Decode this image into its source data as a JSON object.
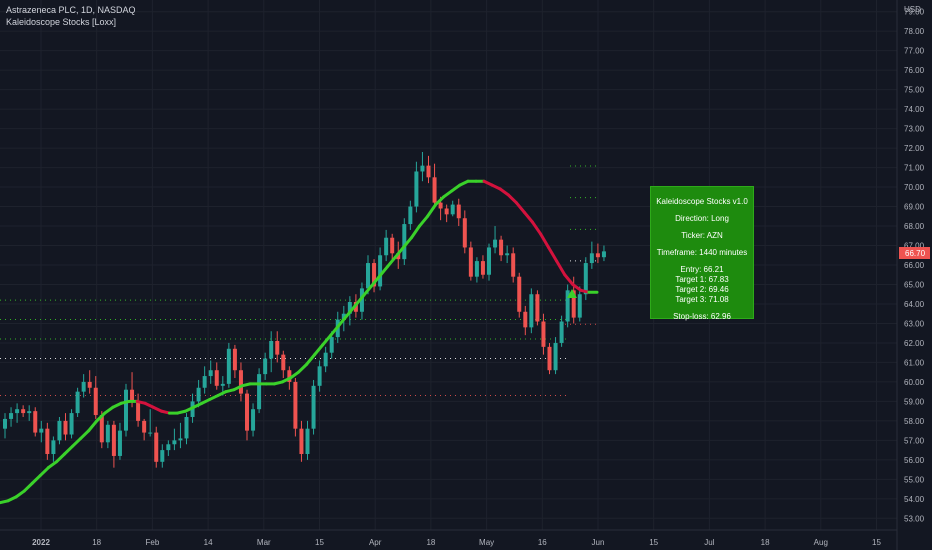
{
  "legend": {
    "symbol_line": "Astrazeneca PLC, 1D, NASDAQ",
    "indicator_line": "Kaleidoscope Stocks [Loxx]"
  },
  "currency": "USD",
  "last_price": "66.70",
  "colors": {
    "background": "#131722",
    "grid": "#1e222d",
    "axis_text": "#b2b5be",
    "up_candle": "#26a69a",
    "down_candle": "#ef5350",
    "ma_up": "#3ad12a",
    "ma_down": "#d3123d",
    "ma_transition": "#ffffff",
    "info_box": "#1e8b0e",
    "price_tag": "#ef5350"
  },
  "info_box": {
    "title": "Kaleidoscope Stocks v1.0",
    "direction": "Direction: Long",
    "ticker": "Ticker: AZN",
    "timeframe": "Timeframe: 1440 minutes",
    "entry": "Entry: 66.21",
    "target1": "Target 1: 67.83",
    "target2": "Target 2: 69.46",
    "target3": "Target 3: 71.08",
    "stoploss": "Stop-loss: 62.96"
  },
  "chart_data": {
    "type": "candlestick",
    "y_axis": {
      "ticks": [
        "53.00",
        "54.00",
        "55.00",
        "56.00",
        "57.00",
        "58.00",
        "59.00",
        "60.00",
        "61.00",
        "62.00",
        "63.00",
        "64.00",
        "65.00",
        "66.00",
        "67.00",
        "68.00",
        "69.00",
        "70.00",
        "71.00",
        "72.00",
        "73.00",
        "74.00",
        "75.00",
        "76.00",
        "77.00",
        "78.00",
        "79.00"
      ],
      "ylim": [
        52.4,
        79.6
      ]
    },
    "x_axis": {
      "ticks": [
        "2022",
        "18",
        "Feb",
        "14",
        "Mar",
        "15",
        "Apr",
        "18",
        "May",
        "16",
        "Jun",
        "15",
        "Jul",
        "18",
        "Aug",
        "15"
      ]
    },
    "candles": [
      {
        "o": 57.6,
        "h": 58.4,
        "l": 57.1,
        "c": 58.1
      },
      {
        "o": 58.1,
        "h": 58.7,
        "l": 57.7,
        "c": 58.4
      },
      {
        "o": 58.4,
        "h": 58.9,
        "l": 57.9,
        "c": 58.6
      },
      {
        "o": 58.6,
        "h": 58.8,
        "l": 58.2,
        "c": 58.4
      },
      {
        "o": 58.4,
        "h": 58.8,
        "l": 58.0,
        "c": 58.5
      },
      {
        "o": 58.5,
        "h": 58.7,
        "l": 57.2,
        "c": 57.4
      },
      {
        "o": 57.4,
        "h": 58.0,
        "l": 56.9,
        "c": 57.6
      },
      {
        "o": 57.6,
        "h": 57.9,
        "l": 56.0,
        "c": 56.3
      },
      {
        "o": 56.3,
        "h": 57.2,
        "l": 55.9,
        "c": 57.0
      },
      {
        "o": 57.0,
        "h": 58.2,
        "l": 56.8,
        "c": 58.0
      },
      {
        "o": 58.0,
        "h": 58.4,
        "l": 57.0,
        "c": 57.3
      },
      {
        "o": 57.3,
        "h": 58.6,
        "l": 57.1,
        "c": 58.4
      },
      {
        "o": 58.4,
        "h": 59.7,
        "l": 58.2,
        "c": 59.5
      },
      {
        "o": 59.5,
        "h": 60.4,
        "l": 59.2,
        "c": 60.0
      },
      {
        "o": 60.0,
        "h": 60.6,
        "l": 59.4,
        "c": 59.7
      },
      {
        "o": 59.7,
        "h": 60.3,
        "l": 58.1,
        "c": 58.3
      },
      {
        "o": 58.3,
        "h": 58.5,
        "l": 56.6,
        "c": 56.9
      },
      {
        "o": 56.9,
        "h": 58.0,
        "l": 56.6,
        "c": 57.8
      },
      {
        "o": 57.8,
        "h": 58.0,
        "l": 55.6,
        "c": 56.2
      },
      {
        "o": 56.2,
        "h": 57.9,
        "l": 56.0,
        "c": 57.5
      },
      {
        "o": 57.5,
        "h": 59.9,
        "l": 57.2,
        "c": 59.6
      },
      {
        "o": 59.6,
        "h": 60.5,
        "l": 58.7,
        "c": 59.0
      },
      {
        "o": 59.0,
        "h": 59.4,
        "l": 57.7,
        "c": 58.0
      },
      {
        "o": 58.0,
        "h": 58.1,
        "l": 57.0,
        "c": 57.4
      },
      {
        "o": 57.4,
        "h": 58.6,
        "l": 57.2,
        "c": 57.4
      },
      {
        "o": 57.4,
        "h": 57.7,
        "l": 55.6,
        "c": 55.9
      },
      {
        "o": 55.9,
        "h": 56.8,
        "l": 55.6,
        "c": 56.5
      },
      {
        "o": 56.5,
        "h": 57.0,
        "l": 56.2,
        "c": 56.8
      },
      {
        "o": 56.8,
        "h": 57.6,
        "l": 56.5,
        "c": 57.0
      },
      {
        "o": 57.0,
        "h": 57.9,
        "l": 56.6,
        "c": 57.1
      },
      {
        "o": 57.1,
        "h": 58.4,
        "l": 56.8,
        "c": 58.2
      },
      {
        "o": 58.2,
        "h": 59.4,
        "l": 57.9,
        "c": 59.0
      },
      {
        "o": 59.0,
        "h": 60.1,
        "l": 58.7,
        "c": 59.7
      },
      {
        "o": 59.7,
        "h": 60.8,
        "l": 59.4,
        "c": 60.3
      },
      {
        "o": 60.3,
        "h": 61.1,
        "l": 59.9,
        "c": 60.6
      },
      {
        "o": 60.6,
        "h": 61.0,
        "l": 59.6,
        "c": 59.8
      },
      {
        "o": 59.8,
        "h": 60.3,
        "l": 59.3,
        "c": 59.9
      },
      {
        "o": 59.9,
        "h": 62.0,
        "l": 59.7,
        "c": 61.7
      },
      {
        "o": 61.7,
        "h": 61.9,
        "l": 60.2,
        "c": 60.6
      },
      {
        "o": 60.6,
        "h": 61.0,
        "l": 59.0,
        "c": 59.4
      },
      {
        "o": 59.4,
        "h": 59.6,
        "l": 57.0,
        "c": 57.5
      },
      {
        "o": 57.5,
        "h": 58.9,
        "l": 57.2,
        "c": 58.6
      },
      {
        "o": 58.6,
        "h": 60.7,
        "l": 58.4,
        "c": 60.4
      },
      {
        "o": 60.4,
        "h": 61.5,
        "l": 60.1,
        "c": 61.2
      },
      {
        "o": 61.2,
        "h": 62.6,
        "l": 60.5,
        "c": 62.1
      },
      {
        "o": 62.1,
        "h": 62.6,
        "l": 61.0,
        "c": 61.4
      },
      {
        "o": 61.4,
        "h": 61.6,
        "l": 60.2,
        "c": 60.6
      },
      {
        "o": 60.6,
        "h": 60.8,
        "l": 59.6,
        "c": 60.0
      },
      {
        "o": 60.0,
        "h": 60.2,
        "l": 57.2,
        "c": 57.6
      },
      {
        "o": 57.6,
        "h": 58.0,
        "l": 55.9,
        "c": 56.3
      },
      {
        "o": 56.3,
        "h": 58.0,
        "l": 56.0,
        "c": 57.6
      },
      {
        "o": 57.6,
        "h": 60.1,
        "l": 57.3,
        "c": 59.8
      },
      {
        "o": 59.8,
        "h": 61.1,
        "l": 59.5,
        "c": 60.8
      },
      {
        "o": 60.8,
        "h": 61.8,
        "l": 60.5,
        "c": 61.5
      },
      {
        "o": 61.5,
        "h": 62.6,
        "l": 61.2,
        "c": 62.3
      },
      {
        "o": 62.3,
        "h": 63.6,
        "l": 62.0,
        "c": 63.2
      },
      {
        "o": 63.2,
        "h": 63.9,
        "l": 62.6,
        "c": 63.5
      },
      {
        "o": 63.5,
        "h": 64.4,
        "l": 62.9,
        "c": 64.1
      },
      {
        "o": 64.1,
        "h": 64.5,
        "l": 63.3,
        "c": 63.6
      },
      {
        "o": 63.6,
        "h": 65.1,
        "l": 63.2,
        "c": 64.8
      },
      {
        "o": 64.8,
        "h": 66.5,
        "l": 64.5,
        "c": 66.1
      },
      {
        "o": 66.1,
        "h": 66.3,
        "l": 64.6,
        "c": 64.9
      },
      {
        "o": 64.9,
        "h": 66.9,
        "l": 64.7,
        "c": 66.5
      },
      {
        "o": 66.5,
        "h": 67.8,
        "l": 66.2,
        "c": 67.4
      },
      {
        "o": 67.4,
        "h": 67.6,
        "l": 66.3,
        "c": 66.6
      },
      {
        "o": 66.6,
        "h": 67.2,
        "l": 65.8,
        "c": 66.3
      },
      {
        "o": 66.3,
        "h": 68.4,
        "l": 66.0,
        "c": 68.1
      },
      {
        "o": 68.1,
        "h": 69.3,
        "l": 67.8,
        "c": 69.0
      },
      {
        "o": 69.0,
        "h": 71.3,
        "l": 68.7,
        "c": 70.8
      },
      {
        "o": 70.8,
        "h": 71.8,
        "l": 70.3,
        "c": 71.1
      },
      {
        "o": 71.1,
        "h": 71.6,
        "l": 70.2,
        "c": 70.5
      },
      {
        "o": 70.5,
        "h": 71.2,
        "l": 68.9,
        "c": 69.2
      },
      {
        "o": 69.2,
        "h": 69.5,
        "l": 68.3,
        "c": 68.9
      },
      {
        "o": 68.9,
        "h": 69.1,
        "l": 68.2,
        "c": 68.6
      },
      {
        "o": 68.6,
        "h": 69.3,
        "l": 68.5,
        "c": 69.1
      },
      {
        "o": 69.1,
        "h": 69.4,
        "l": 68.0,
        "c": 68.4
      },
      {
        "o": 68.4,
        "h": 68.8,
        "l": 66.6,
        "c": 66.9
      },
      {
        "o": 66.9,
        "h": 67.2,
        "l": 65.2,
        "c": 65.4
      },
      {
        "o": 65.4,
        "h": 66.4,
        "l": 65.1,
        "c": 66.2
      },
      {
        "o": 66.2,
        "h": 66.5,
        "l": 65.3,
        "c": 65.5
      },
      {
        "o": 65.5,
        "h": 67.1,
        "l": 65.2,
        "c": 66.9
      },
      {
        "o": 66.9,
        "h": 68.0,
        "l": 66.6,
        "c": 67.3
      },
      {
        "o": 67.3,
        "h": 67.5,
        "l": 66.2,
        "c": 66.5
      },
      {
        "o": 66.5,
        "h": 67.0,
        "l": 66.1,
        "c": 66.6
      },
      {
        "o": 66.6,
        "h": 66.9,
        "l": 65.1,
        "c": 65.4
      },
      {
        "o": 65.4,
        "h": 65.6,
        "l": 63.3,
        "c": 63.6
      },
      {
        "o": 63.6,
        "h": 63.9,
        "l": 62.4,
        "c": 62.8
      },
      {
        "o": 62.8,
        "h": 64.8,
        "l": 62.5,
        "c": 64.5
      },
      {
        "o": 64.5,
        "h": 64.7,
        "l": 62.9,
        "c": 63.1
      },
      {
        "o": 63.1,
        "h": 63.5,
        "l": 61.4,
        "c": 61.8
      },
      {
        "o": 61.8,
        "h": 62.0,
        "l": 60.4,
        "c": 60.6
      },
      {
        "o": 60.6,
        "h": 62.3,
        "l": 60.4,
        "c": 62.0
      },
      {
        "o": 62.0,
        "h": 63.4,
        "l": 61.8,
        "c": 63.1
      },
      {
        "o": 63.1,
        "h": 65.0,
        "l": 62.8,
        "c": 64.7
      },
      {
        "o": 64.7,
        "h": 65.4,
        "l": 63.0,
        "c": 63.3
      },
      {
        "o": 63.3,
        "h": 64.9,
        "l": 63.1,
        "c": 64.5
      },
      {
        "o": 64.5,
        "h": 66.4,
        "l": 64.2,
        "c": 66.1
      },
      {
        "o": 66.1,
        "h": 67.2,
        "l": 65.8,
        "c": 66.6
      },
      {
        "o": 66.6,
        "h": 67.1,
        "l": 66.1,
        "c": 66.4
      },
      {
        "o": 66.4,
        "h": 67.0,
        "l": 66.2,
        "c": 66.7
      }
    ],
    "series": [
      {
        "values": [
          53.8,
          53.9,
          54.1,
          54.4,
          54.8,
          55.2,
          55.6,
          55.9,
          56.3,
          56.7,
          57.1,
          57.5,
          58.0,
          58.4,
          58.7,
          58.9,
          59.0,
          59.0,
          58.9,
          58.7,
          58.5,
          58.4,
          58.4,
          58.5,
          58.7,
          58.9,
          59.1,
          59.3,
          59.5,
          59.6,
          59.8,
          59.9,
          59.9,
          59.9,
          59.9,
          60.0,
          60.2,
          60.5,
          60.9,
          61.4,
          61.9,
          62.4,
          62.9,
          63.4,
          63.9,
          64.4,
          64.9,
          65.4,
          65.9,
          66.4,
          66.9,
          67.4,
          68.0,
          68.5,
          69.1,
          69.5,
          69.8,
          70.1,
          70.3,
          70.3,
          70.3,
          70.1,
          69.9,
          69.6,
          69.2,
          68.7,
          68.2,
          67.6,
          66.9,
          66.2,
          65.5,
          65.0,
          64.7,
          64.6,
          64.6
        ]
      }
    ],
    "levels": [
      {
        "value": 71.08,
        "label": "Target 3"
      },
      {
        "value": 69.46,
        "label": "Target 2"
      },
      {
        "value": 67.83,
        "label": "Target 1"
      },
      {
        "value": 66.21,
        "label": "Entry"
      },
      {
        "value": 62.96,
        "label": "Stop-loss"
      },
      {
        "value": 64.2
      },
      {
        "value": 63.2
      },
      {
        "value": 62.2
      },
      {
        "value": 61.2
      },
      {
        "value": 59.3
      }
    ]
  }
}
